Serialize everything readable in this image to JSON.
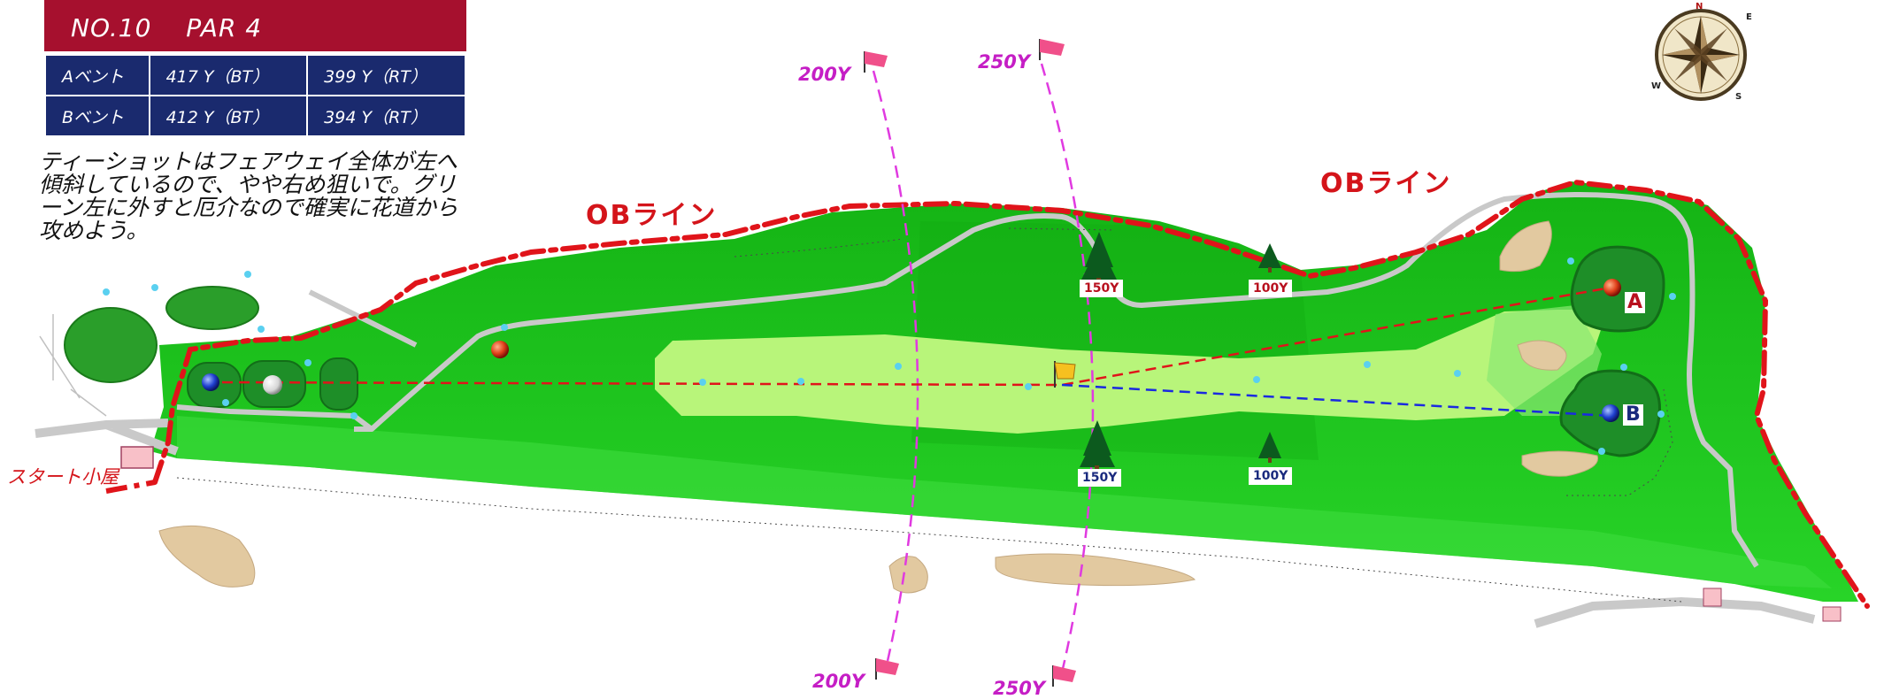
{
  "hole": {
    "number": "NO.10",
    "par": "PAR 4",
    "header_color": "#a6102e",
    "table_color": "#1a2a6e"
  },
  "tees": [
    {
      "name": "Aベント",
      "bt": "417 Y（BT）",
      "rt": "399 Y（RT）"
    },
    {
      "name": "Bベント",
      "bt": "412 Y（BT）",
      "rt": "394 Y（RT）"
    }
  ],
  "note": "ティーショットはフェアウェイ全体が左へ傾斜しているので、やや右め狙いで。グリーン左に外すと厄介なので確実に花道から攻めよう。",
  "ob_label": "OBライン",
  "start_label": "スタート小屋",
  "yardage_markers": {
    "y200": "200Y",
    "y250": "250Y"
  },
  "tree_markers": {
    "y150": "150Y",
    "y100": "100Y"
  },
  "greens": {
    "a": "A",
    "b": "B"
  },
  "compass": {
    "n": "N",
    "e": "E",
    "s": "S",
    "w": "W"
  },
  "colors": {
    "rough": "#1fc11f",
    "fairway": "#b8f57a",
    "green": "#2e9e3a",
    "ob_line": "#e0141a",
    "cart_path": "#c9c9c9",
    "bunker": "#e2c9a0",
    "yard_line": "#e03ae0",
    "aim_a": "#e0141a",
    "aim_b": "#1a2ae0"
  }
}
